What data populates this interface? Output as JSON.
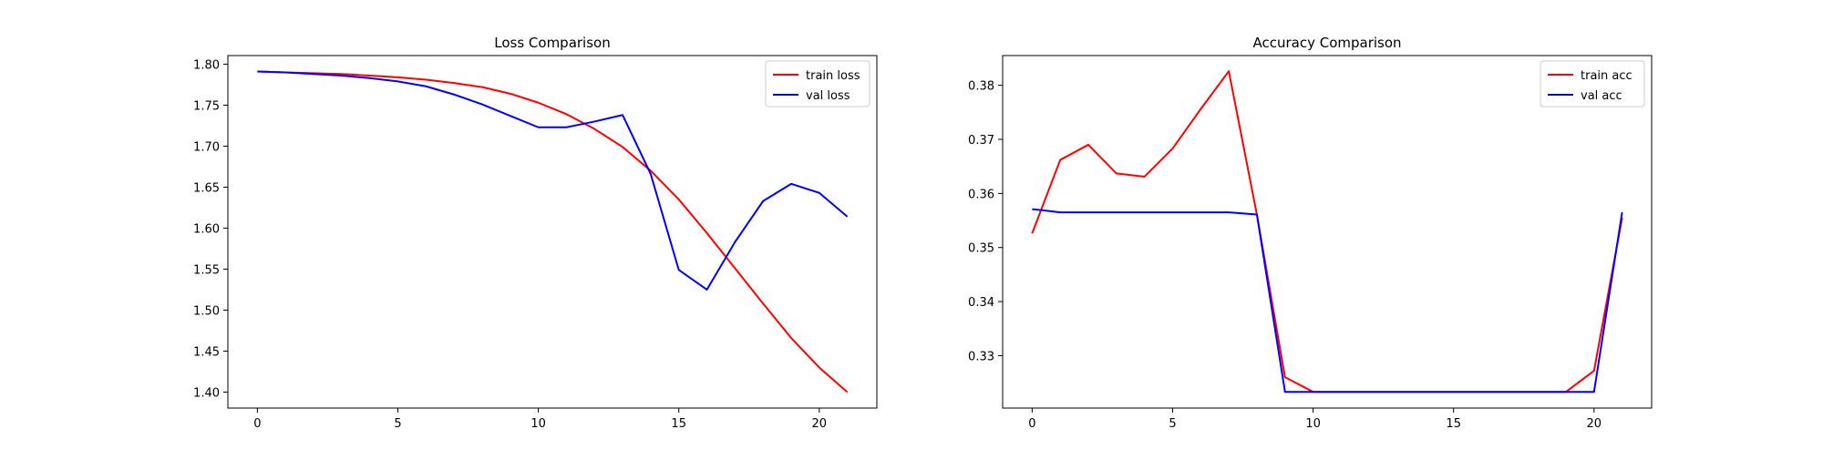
{
  "chart_data": [
    {
      "type": "line",
      "title": "Loss Comparison",
      "xlabel": "",
      "ylabel": "",
      "xlim": [
        -1.05,
        22.05
      ],
      "ylim": [
        1.3805,
        1.8105
      ],
      "xticks": [
        0,
        5,
        10,
        15,
        20
      ],
      "xtick_labels": [
        "0",
        "5",
        "10",
        "15",
        "20"
      ],
      "yticks": [
        1.4,
        1.45,
        1.5,
        1.55,
        1.6,
        1.65,
        1.7,
        1.75,
        1.8
      ],
      "ytick_labels": [
        "1.40",
        "1.45",
        "1.50",
        "1.55",
        "1.60",
        "1.65",
        "1.70",
        "1.75",
        "1.80"
      ],
      "grid": false,
      "legend_position": "top-right",
      "x": [
        0,
        1,
        2,
        3,
        4,
        5,
        6,
        7,
        8,
        9,
        10,
        11,
        12,
        13,
        14,
        15,
        16,
        17,
        18,
        19,
        20,
        21
      ],
      "series": [
        {
          "name": "train loss",
          "color": "#ff0000",
          "values": [
            1.791,
            1.79,
            1.789,
            1.788,
            1.786,
            1.784,
            1.781,
            1.777,
            1.772,
            1.764,
            1.753,
            1.739,
            1.721,
            1.699,
            1.67,
            1.635,
            1.594,
            1.551,
            1.508,
            1.466,
            1.43,
            1.4
          ]
        },
        {
          "name": "val loss",
          "color": "#0000ff",
          "values": [
            1.791,
            1.79,
            1.788,
            1.786,
            1.783,
            1.779,
            1.773,
            1.763,
            1.751,
            1.737,
            1.723,
            1.723,
            1.73,
            1.738,
            1.666,
            1.549,
            1.525,
            1.583,
            1.633,
            1.654,
            1.643,
            1.614
          ]
        }
      ]
    },
    {
      "type": "line",
      "title": "Accuracy Comparison",
      "xlabel": "",
      "ylabel": "",
      "xlim": [
        -1.05,
        22.05
      ],
      "ylim": [
        0.3203,
        0.3855
      ],
      "xticks": [
        0,
        5,
        10,
        15,
        20
      ],
      "xtick_labels": [
        "0",
        "5",
        "10",
        "15",
        "20"
      ],
      "yticks": [
        0.33,
        0.34,
        0.35,
        0.36,
        0.37,
        0.38
      ],
      "ytick_labels": [
        "0.33",
        "0.34",
        "0.35",
        "0.36",
        "0.37",
        "0.38"
      ],
      "grid": false,
      "legend_position": "top-right",
      "x": [
        0,
        1,
        2,
        3,
        4,
        5,
        6,
        7,
        8,
        9,
        10,
        11,
        12,
        13,
        14,
        15,
        16,
        17,
        18,
        19,
        20,
        21
      ],
      "series": [
        {
          "name": "train acc",
          "color": "#ff0000",
          "values": [
            0.3526,
            0.3662,
            0.369,
            0.3637,
            0.3631,
            0.3683,
            0.3756,
            0.3826,
            0.3561,
            0.326,
            0.3233,
            0.3233,
            0.3233,
            0.3233,
            0.3233,
            0.3233,
            0.3233,
            0.3233,
            0.3233,
            0.3233,
            0.3272,
            0.3555
          ]
        },
        {
          "name": "val acc",
          "color": "#0000ff",
          "values": [
            0.3571,
            0.3565,
            0.3565,
            0.3565,
            0.3565,
            0.3565,
            0.3565,
            0.3565,
            0.3561,
            0.3233,
            0.3233,
            0.3233,
            0.3233,
            0.3233,
            0.3233,
            0.3233,
            0.3233,
            0.3233,
            0.3233,
            0.3233,
            0.3233,
            0.3565
          ]
        }
      ]
    }
  ]
}
